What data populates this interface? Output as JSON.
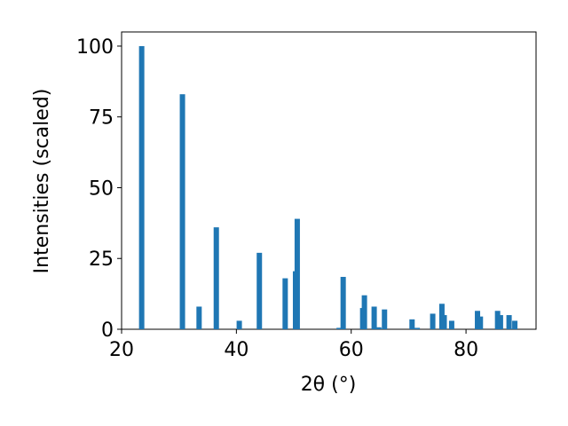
{
  "chart_data": {
    "type": "bar",
    "x_label": "2θ (°)",
    "y_label": "Intensities (scaled)",
    "x": [
      23.5,
      30.6,
      33.5,
      36.5,
      40.5,
      44.0,
      48.5,
      50.3,
      50.6,
      57.9,
      58.6,
      62.0,
      62.3,
      64.0,
      64.8,
      65.8,
      70.6,
      71.5,
      74.2,
      75.8,
      76.2,
      77.5,
      82.0,
      82.5,
      85.5,
      86.0,
      87.5,
      88.5
    ],
    "values": [
      100,
      83,
      8,
      36,
      3,
      27,
      18,
      20.5,
      39,
      0.5,
      18.5,
      7.5,
      12,
      8,
      0.7,
      7,
      3.5,
      0.5,
      5.5,
      9,
      5,
      3,
      6.5,
      4.5,
      6.5,
      5,
      5,
      3
    ],
    "color": "#1f77b4",
    "xlim": [
      20,
      92.2
    ],
    "xticks": [
      20,
      40,
      60,
      80
    ],
    "ylim": [
      0,
      105
    ],
    "yticks": [
      0,
      25,
      50,
      75,
      100
    ]
  }
}
